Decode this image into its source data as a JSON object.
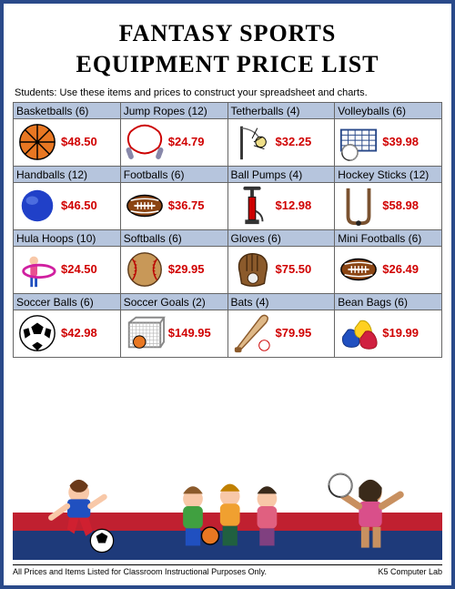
{
  "title_line1": "FANTASY SPORTS",
  "title_line2": "EQUIPMENT PRICE LIST",
  "instructions": "Students: Use these items and prices to construct your spreadsheet and charts.",
  "colors": {
    "border": "#2a4a8a",
    "header_row": "#b6c5dd",
    "price": "#d00000",
    "stripe_red": "#c02030",
    "stripe_blue": "#1e3a7a"
  },
  "grid": {
    "cols": 4,
    "rows": 4,
    "items": [
      {
        "label": "Basketballs (6)",
        "price": "$48.50",
        "icon": "basketball"
      },
      {
        "label": "Jump Ropes (12)",
        "price": "$24.79",
        "icon": "jumprope"
      },
      {
        "label": "Tetherballs (4)",
        "price": "$32.25",
        "icon": "tetherball"
      },
      {
        "label": "Volleyballs (6)",
        "price": "$39.98",
        "icon": "volleyball-net"
      },
      {
        "label": "Handballs  (12)",
        "price": "$46.50",
        "icon": "handball"
      },
      {
        "label": "Footballs (6)",
        "price": "$36.75",
        "icon": "football"
      },
      {
        "label": "Ball Pumps (4)",
        "price": "$12.98",
        "icon": "pump"
      },
      {
        "label": "Hockey Sticks  (12)",
        "price": "$58.98",
        "icon": "hockey"
      },
      {
        "label": "Hula Hoops (10)",
        "price": "$24.50",
        "icon": "hulahoop"
      },
      {
        "label": "Softballs (6)",
        "price": "$29.95",
        "icon": "softball"
      },
      {
        "label": "Gloves (6)",
        "price": "$75.50",
        "icon": "glove"
      },
      {
        "label": "Mini Footballs (6)",
        "price": "$26.49",
        "icon": "football"
      },
      {
        "label": "Soccer Balls (6)",
        "price": "$42.98",
        "icon": "soccer"
      },
      {
        "label": "Soccer Goals  (2)",
        "price": "$149.95",
        "icon": "goal"
      },
      {
        "label": "Bats (4)",
        "price": "$79.95",
        "icon": "bat"
      },
      {
        "label": "Bean Bags (6)",
        "price": "$19.99",
        "icon": "beanbags"
      }
    ]
  },
  "footer_left": "All Prices and Items Listed for Classroom Instructional Purposes Only.",
  "footer_right": "K5 Computer Lab"
}
